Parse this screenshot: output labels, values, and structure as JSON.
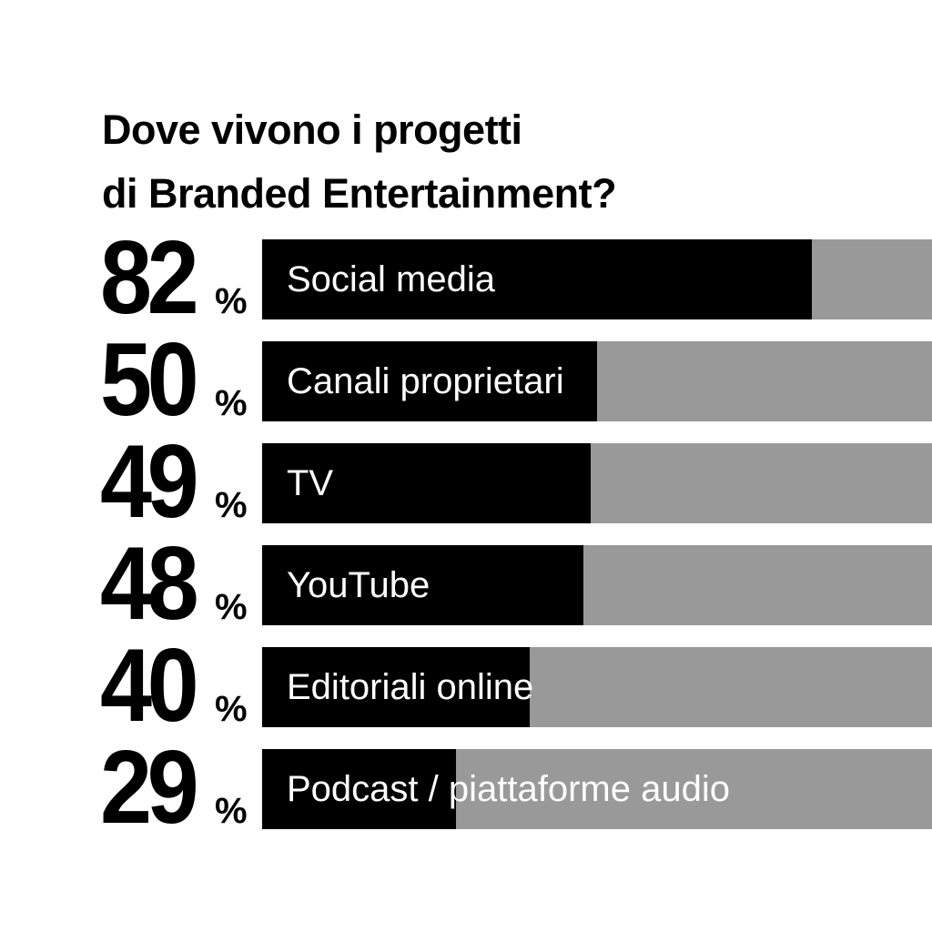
{
  "chart_data": {
    "type": "bar",
    "orientation": "horizontal",
    "title": [
      "Dove vivono i progetti",
      "di Branded Entertainment?"
    ],
    "categories": [
      "Social media",
      "Canali proprietari",
      "TV",
      "YouTube",
      "Editoriali online",
      "Podcast / piattaforme audio"
    ],
    "values": [
      82,
      50,
      49,
      48,
      40,
      29
    ],
    "value_labels": [
      "82",
      "50",
      "49",
      "48",
      "40",
      "29"
    ],
    "unit": "%",
    "xlim": [
      0,
      100
    ],
    "colors": {
      "fill": "#000000",
      "track": "#999999",
      "label": "#ffffff"
    }
  }
}
